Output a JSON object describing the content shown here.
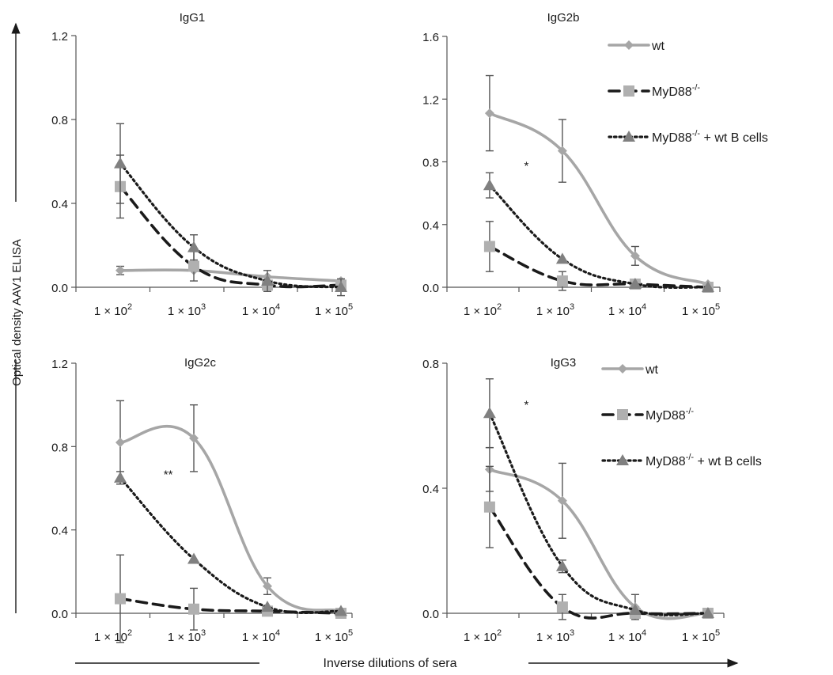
{
  "figure": {
    "ylabel": "Optical density AAV1 ELISA",
    "xlabel": "Inverse dilutions of sera",
    "colors": {
      "wt": "#a6a6a6",
      "myd88": "#1a1a1a",
      "myd88_b": "#1a1a1a",
      "axis": "#555555",
      "text": "#1a1a1a",
      "errbar": "#555555",
      "sq": "#b0b0b0",
      "tri": "#808080"
    }
  },
  "chart_data": [
    {
      "type": "line",
      "title": "IgG1",
      "x_ticks": [
        {
          "base": "1 × 10",
          "exp": "2"
        },
        {
          "base": "1 × 10",
          "exp": "3"
        },
        {
          "base": "1 × 10",
          "exp": "4"
        },
        {
          "base": "1 × 10",
          "exp": "5"
        }
      ],
      "x_log": true,
      "x": [
        125,
        1250,
        12500,
        125000
      ],
      "ylim": [
        0,
        1.2
      ],
      "yticks": [
        "0.0",
        "0.4",
        "0.8",
        "1.2"
      ],
      "legend": false,
      "series": [
        {
          "name": "wt",
          "values": [
            0.08,
            0.08,
            0.05,
            0.03
          ],
          "errors": [
            0.02,
            0.0,
            0.0,
            0.0
          ]
        },
        {
          "name": "MyD88",
          "values": [
            0.48,
            0.1,
            0.01,
            0.01
          ],
          "errors": [
            0.15,
            0.07,
            0.0,
            0.0
          ]
        },
        {
          "name": "MyD88 + wt B cells",
          "values": [
            0.59,
            0.19,
            0.03,
            0.0
          ],
          "errors": [
            0.19,
            0.06,
            0.05,
            0.04
          ]
        }
      ],
      "annotations": []
    },
    {
      "type": "line",
      "title": "IgG2b",
      "x_ticks": [
        {
          "base": "1 × 10",
          "exp": "2"
        },
        {
          "base": "1 × 10",
          "exp": "3"
        },
        {
          "base": "1 × 10",
          "exp": "4"
        },
        {
          "base": "1 × 10",
          "exp": "5"
        }
      ],
      "x_log": true,
      "x": [
        125,
        1250,
        12500,
        125000
      ],
      "ylim": [
        0,
        1.6
      ],
      "yticks": [
        "0.0",
        "0.4",
        "0.8",
        "1.2",
        "1.6"
      ],
      "legend": true,
      "series": [
        {
          "name": "wt",
          "values": [
            1.11,
            0.87,
            0.2,
            0.02
          ],
          "errors": [
            0.24,
            0.2,
            0.06,
            0.0
          ]
        },
        {
          "name": "MyD88",
          "values": [
            0.26,
            0.04,
            0.02,
            0.0
          ],
          "errors": [
            0.16,
            0.06,
            0.0,
            0.0
          ]
        },
        {
          "name": "MyD88 + wt B cells",
          "values": [
            0.65,
            0.18,
            0.02,
            0.0
          ],
          "errors": [
            0.08,
            0.0,
            0.0,
            0.0
          ]
        }
      ],
      "annotations": [
        {
          "text": "*",
          "x": 400,
          "y": 0.78
        }
      ]
    },
    {
      "type": "line",
      "title": "IgG2c",
      "x_ticks": [
        {
          "base": "1 × 10",
          "exp": "2"
        },
        {
          "base": "1 × 10",
          "exp": "3"
        },
        {
          "base": "1 × 10",
          "exp": "4"
        },
        {
          "base": "1 × 10",
          "exp": "5"
        }
      ],
      "x_log": true,
      "x": [
        125,
        1250,
        12500,
        125000
      ],
      "ylim": [
        0,
        1.2
      ],
      "yticks": [
        "0.0",
        "0.4",
        "0.8",
        "1.2"
      ],
      "legend": false,
      "series": [
        {
          "name": "wt",
          "values": [
            0.82,
            0.84,
            0.13,
            0.01
          ],
          "errors": [
            0.2,
            0.16,
            0.04,
            0.0
          ]
        },
        {
          "name": "MyD88",
          "values": [
            0.07,
            0.02,
            0.01,
            0.0
          ],
          "errors": [
            0.21,
            0.1,
            0.0,
            0.0
          ]
        },
        {
          "name": "MyD88 + wt B cells",
          "values": [
            0.65,
            0.26,
            0.03,
            0.01
          ],
          "errors": [
            0.03,
            0.0,
            0.0,
            0.0
          ]
        }
      ],
      "annotations": [
        {
          "text": "**",
          "x": 560,
          "y": 0.67
        }
      ]
    },
    {
      "type": "line",
      "title": "IgG3",
      "x_ticks": [
        {
          "base": "1 × 10",
          "exp": "2"
        },
        {
          "base": "1 × 10",
          "exp": "3"
        },
        {
          "base": "1 × 10",
          "exp": "4"
        },
        {
          "base": "1 × 10",
          "exp": "5"
        }
      ],
      "x_log": true,
      "x": [
        125,
        1250,
        12500,
        125000
      ],
      "ylim": [
        0,
        0.8
      ],
      "yticks": [
        "0.0",
        "0.4",
        "0.8"
      ],
      "legend": true,
      "series": [
        {
          "name": "wt",
          "values": [
            0.46,
            0.36,
            0.02,
            0.0
          ],
          "errors": [
            0.07,
            0.12,
            0.04,
            0.0
          ]
        },
        {
          "name": "MyD88",
          "values": [
            0.34,
            0.02,
            0.0,
            0.0
          ],
          "errors": [
            0.13,
            0.04,
            0.0,
            0.0
          ]
        },
        {
          "name": "MyD88 + wt B cells",
          "values": [
            0.64,
            0.15,
            0.01,
            0.0
          ],
          "errors": [
            0.11,
            0.02,
            0.0,
            0.0
          ]
        }
      ],
      "annotations": [
        {
          "text": "*",
          "x": 400,
          "y": 0.67
        }
      ]
    }
  ],
  "legend": [
    {
      "series": "wt",
      "label": "wt",
      "sup": "",
      "suffix": ""
    },
    {
      "series": "MyD88",
      "label": "MyD88",
      "sup": "-/-",
      "suffix": ""
    },
    {
      "series": "MyD88 + wt B cells",
      "label": "MyD88",
      "sup": "-/-",
      "suffix": " + wt B cells"
    }
  ]
}
